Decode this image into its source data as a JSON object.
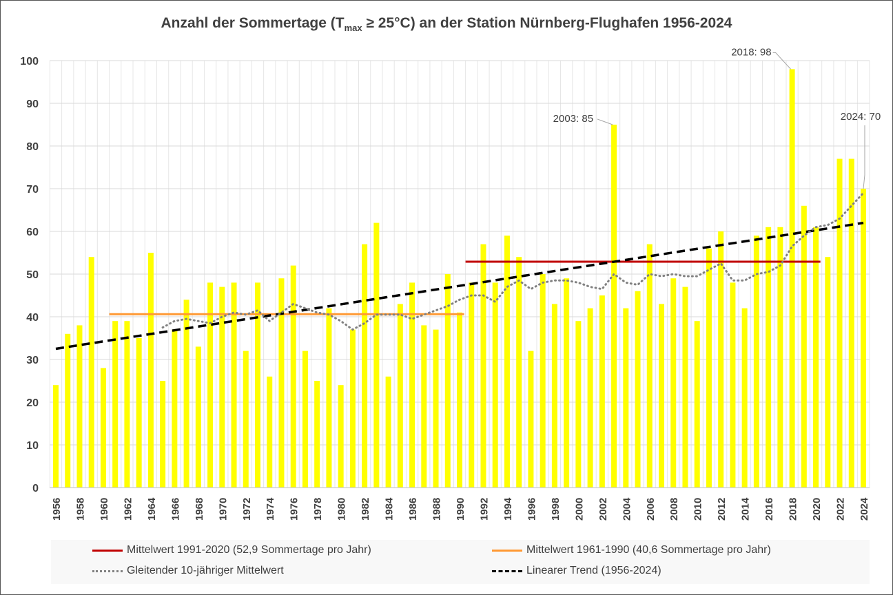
{
  "chart_data": {
    "type": "bar",
    "title_parts": {
      "before": "Anzahl der Sommertage (T",
      "sub": "max",
      "after": " ≥ 25°C) an der Station Nürnberg-Flughafen 1956-2024"
    },
    "xlabel": "",
    "ylabel": "",
    "ylim": [
      0,
      100
    ],
    "yticks": [
      0,
      10,
      20,
      30,
      40,
      50,
      60,
      70,
      80,
      90,
      100
    ],
    "grid": true,
    "years": [
      1956,
      1957,
      1958,
      1959,
      1960,
      1961,
      1962,
      1963,
      1964,
      1965,
      1966,
      1967,
      1968,
      1969,
      1970,
      1971,
      1972,
      1973,
      1974,
      1975,
      1976,
      1977,
      1978,
      1979,
      1980,
      1981,
      1982,
      1983,
      1984,
      1985,
      1986,
      1987,
      1988,
      1989,
      1990,
      1991,
      1992,
      1993,
      1994,
      1995,
      1996,
      1997,
      1998,
      1999,
      2000,
      2001,
      2002,
      2003,
      2004,
      2005,
      2006,
      2007,
      2008,
      2009,
      2010,
      2011,
      2012,
      2013,
      2014,
      2015,
      2016,
      2017,
      2018,
      2019,
      2020,
      2021,
      2022,
      2023,
      2024
    ],
    "values": [
      24,
      36,
      38,
      54,
      28,
      39,
      39,
      35,
      55,
      25,
      37,
      44,
      33,
      48,
      47,
      48,
      32,
      48,
      26,
      49,
      52,
      32,
      25,
      42,
      24,
      37,
      57,
      62,
      26,
      43,
      48,
      38,
      37,
      50,
      41,
      48,
      57,
      48,
      59,
      54,
      32,
      50,
      43,
      49,
      39,
      42,
      45,
      85,
      42,
      46,
      57,
      43,
      49,
      47,
      39,
      56,
      60,
      48,
      42,
      59,
      61,
      61,
      98,
      66,
      61,
      54,
      77,
      77,
      70
    ],
    "bar_color": "#ffff00",
    "moving_average": {
      "name": "Gleitender 10-jähriger Mittelwert",
      "color": "#808080",
      "start_year": 1965,
      "values": [
        37.5,
        39,
        39.5,
        39,
        38.5,
        40,
        41,
        40.5,
        41.5,
        39,
        41,
        43,
        42,
        41,
        40.5,
        39,
        37,
        38.5,
        40.5,
        40.5,
        40.5,
        39.5,
        40.5,
        41.5,
        42.5,
        44,
        45,
        45,
        43.5,
        47,
        48.5,
        46.5,
        48,
        48.5,
        48.5,
        48,
        47,
        46.5,
        50,
        48,
        47.5,
        50,
        49.5,
        50,
        49.5,
        49.5,
        51,
        52.5,
        48.5,
        48.5,
        50,
        50.5,
        52,
        56.5,
        59,
        61,
        61.5,
        63,
        66,
        69
      ]
    },
    "mean_lines": [
      {
        "name": "Mittelwert 1991-2020 (52,9 Sommertage pro Jahr)",
        "from": 1991,
        "to": 2020,
        "value": 52.9,
        "color": "#c00000"
      },
      {
        "name": "Mittelwert 1961-1990 (40,6 Sommertage pro Jahr)",
        "from": 1961,
        "to": 1990,
        "value": 40.6,
        "color": "#ff9933"
      }
    ],
    "trend": {
      "name": "Linearer Trend (1956-2024)",
      "from": [
        1956,
        32.5
      ],
      "to": [
        2024,
        62
      ],
      "color": "#000000"
    },
    "annotations": [
      {
        "year": 2003,
        "value": 85,
        "text": "2003: 85"
      },
      {
        "year": 2018,
        "value": 98,
        "text": "2018: 98"
      },
      {
        "year": 2024,
        "value": 70,
        "text": "2024: 70"
      }
    ],
    "legend_position": "bottom"
  }
}
